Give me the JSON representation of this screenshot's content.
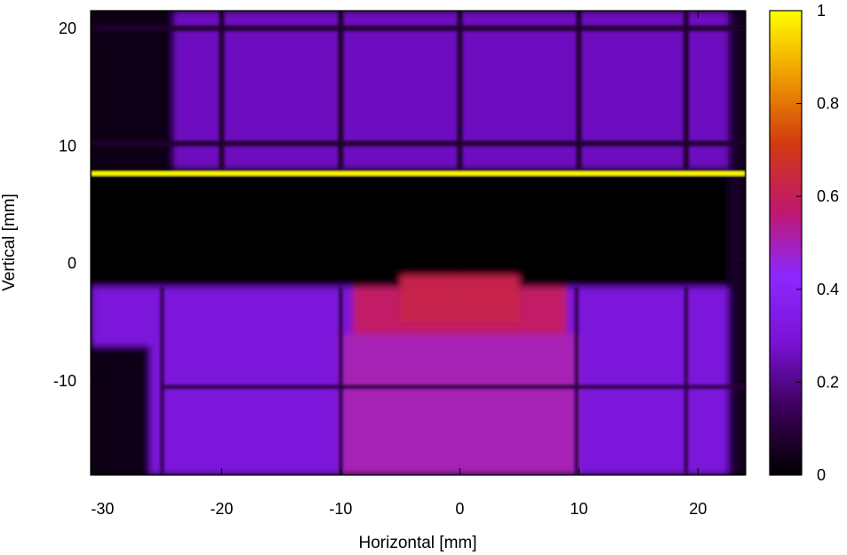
{
  "chart_data": {
    "type": "heatmap",
    "xlabel": "Horizontal [mm]",
    "ylabel": "Vertical [mm]",
    "xlim": [
      -31,
      24
    ],
    "ylim": [
      -18,
      21.5
    ],
    "xticks": [
      -30,
      -20,
      -10,
      0,
      10,
      20
    ],
    "yticks": [
      -10,
      0,
      10,
      20
    ],
    "colorbar": {
      "range": [
        0,
        1
      ],
      "ticks": [
        0,
        0.2,
        0.4,
        0.6,
        0.8,
        1
      ],
      "tick_labels": [
        "0",
        "0.2",
        "0.4",
        "0.6",
        "0.8",
        "1"
      ],
      "colormap": [
        "#000000",
        "#3a0058",
        "#7a12d6",
        "#8c28ff",
        "#c0186a",
        "#d23a10",
        "#ef9b00",
        "#ffff00"
      ]
    },
    "regions": [
      {
        "name": "upper-grid-field",
        "x": [
          -31,
          24
        ],
        "y": [
          8,
          21.5
        ],
        "value": 0.26
      },
      {
        "name": "bright-line",
        "x": [
          -31,
          24
        ],
        "y": [
          7.4,
          7.9
        ],
        "value": 1.0
      },
      {
        "name": "shadow-band",
        "x": [
          -31,
          24
        ],
        "y": [
          -2,
          7.4
        ],
        "value": 0.0
      },
      {
        "name": "lower-field",
        "x": [
          -31,
          24
        ],
        "y": [
          -18,
          -2
        ],
        "value": 0.3
      },
      {
        "name": "central-block",
        "x": [
          -10,
          10
        ],
        "y": [
          -18,
          -6
        ],
        "value": 0.5
      },
      {
        "name": "central-top",
        "x": [
          -9,
          9
        ],
        "y": [
          -6,
          -2
        ],
        "value": 0.58
      },
      {
        "name": "notch-left",
        "x": [
          -5,
          0
        ],
        "y": [
          -5,
          -1
        ],
        "value": 0.62
      },
      {
        "name": "notch-right",
        "x": [
          0,
          5
        ],
        "y": [
          -5,
          -1
        ],
        "value": 0.62
      }
    ]
  }
}
